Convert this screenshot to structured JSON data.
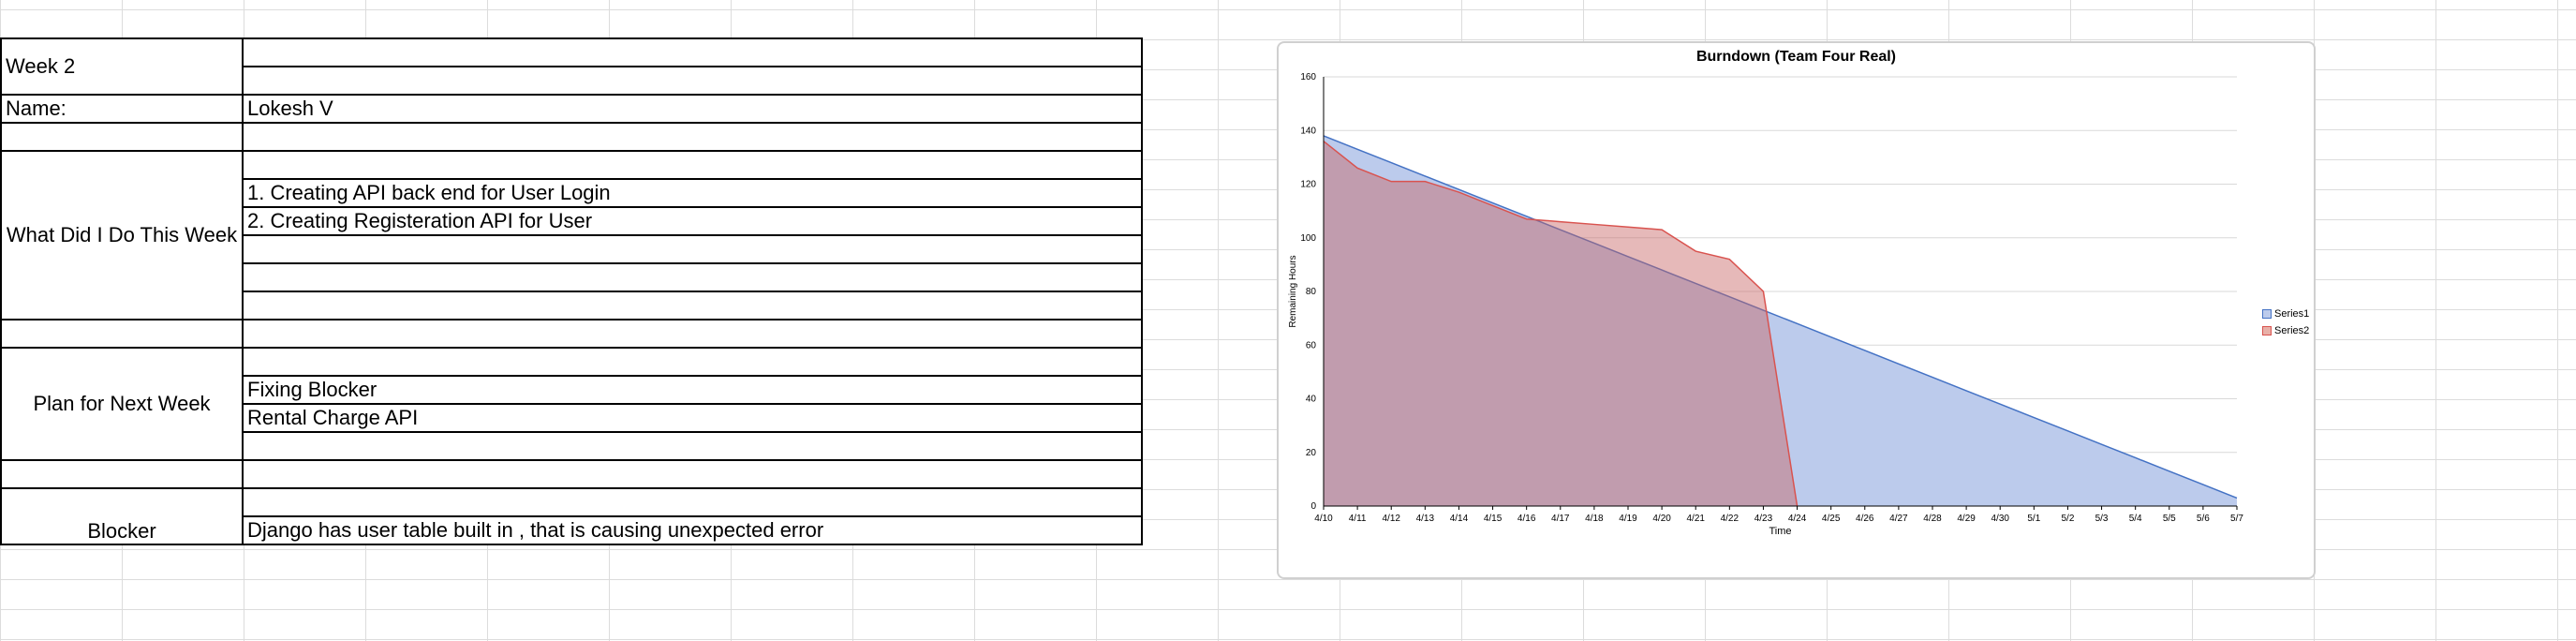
{
  "sheet": {
    "rows": [
      {
        "label": "Week 2",
        "values": [
          "",
          ""
        ],
        "align": "left"
      },
      {
        "label": "Name:",
        "values": [
          "Lokesh V"
        ],
        "align": "left"
      },
      {
        "label": "",
        "values": [
          ""
        ],
        "align": "left"
      },
      {
        "label": "What Did I Do This Week",
        "values": [
          "",
          "1. Creating API back end for User Login",
          "2. Creating Registeration API  for User",
          "",
          "",
          ""
        ],
        "align": "center"
      },
      {
        "label": "",
        "values": [
          ""
        ],
        "align": "left"
      },
      {
        "label": "Plan for Next Week",
        "values": [
          "",
          "Fixing Blocker",
          "Rental Charge API",
          ""
        ],
        "align": "center"
      },
      {
        "label": "",
        "values": [
          ""
        ],
        "align": "left"
      },
      {
        "label": "Blocker",
        "values": [
          "",
          "Django has user table built in , that is causing unexpected error"
        ],
        "align": "center-bottom"
      }
    ]
  },
  "chart_data": {
    "type": "area",
    "title": "Burndown (Team Four Real)",
    "xlabel": "Time",
    "ylabel": "Remaining  Hours",
    "ylim": [
      0,
      160
    ],
    "yticks": [
      0,
      20,
      40,
      60,
      80,
      100,
      120,
      140,
      160
    ],
    "categories": [
      "4/10",
      "4/11",
      "4/12",
      "4/13",
      "4/14",
      "4/15",
      "4/16",
      "4/17",
      "4/18",
      "4/19",
      "4/20",
      "4/21",
      "4/22",
      "4/23",
      "4/24",
      "4/25",
      "4/26",
      "4/27",
      "4/28",
      "4/29",
      "4/30",
      "5/1",
      "5/2",
      "5/3",
      "5/4",
      "5/5",
      "5/6",
      "5/7"
    ],
    "grid": true,
    "legend_position": "right",
    "series": [
      {
        "name": "Series1",
        "color": "#4472c4",
        "fill": "#bccbec",
        "values": [
          138,
          133,
          128,
          123,
          118,
          113,
          108,
          103,
          98,
          93,
          88,
          83,
          78,
          73,
          68,
          63,
          58,
          53,
          48,
          43,
          38,
          33,
          28,
          23,
          18,
          13,
          8,
          3
        ]
      },
      {
        "name": "Series2",
        "color": "#d9534f",
        "fill": "rgba(200,100,100,0.45)",
        "values": [
          136,
          126,
          121,
          121,
          117,
          112,
          107,
          106,
          105,
          104,
          103,
          95,
          92,
          80,
          0,
          null,
          null,
          null,
          null,
          null,
          null,
          null,
          null,
          null,
          null,
          null,
          null,
          null
        ]
      }
    ]
  }
}
